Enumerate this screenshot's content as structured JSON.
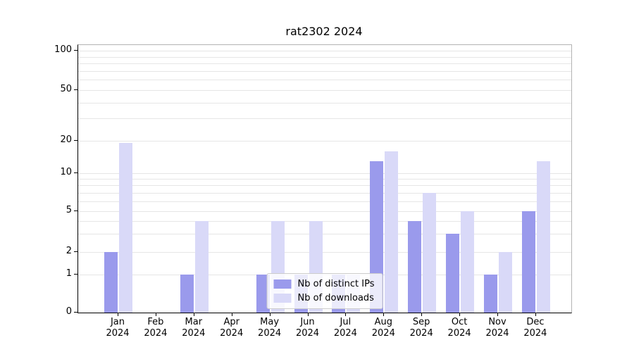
{
  "figure": {
    "title": "rat2302 2024"
  },
  "colors": {
    "ips": "#9a9aec",
    "downloads": "#d9d9f8",
    "grid": "#e6e6e6",
    "spine": "#000000",
    "spine_light": "#b3b3b3",
    "legend_border": "#cccccc",
    "background": "#ffffff"
  },
  "chart_data": {
    "type": "bar",
    "title": "rat2302 2024",
    "categories": [
      "Jan",
      "Feb",
      "Mar",
      "Apr",
      "May",
      "Jun",
      "Jul",
      "Aug",
      "Sep",
      "Oct",
      "Nov",
      "Dec"
    ],
    "x_year": "2024",
    "series": [
      {
        "name": "Nb of distinct IPs",
        "color": "#9a9aec",
        "values": [
          2,
          0,
          1,
          0,
          1,
          1,
          1,
          13,
          4,
          3,
          1,
          5
        ]
      },
      {
        "name": "Nb of downloads",
        "color": "#d9d9f8",
        "values": [
          19,
          0,
          4,
          0,
          4,
          4,
          1,
          16,
          7,
          5,
          2,
          13
        ]
      }
    ],
    "yscale": "symlog",
    "ylim": [
      0,
      110
    ],
    "yticks": [
      0,
      1,
      2,
      5,
      10,
      20,
      50,
      100
    ],
    "minor_gridlines": [
      3,
      4,
      6,
      7,
      8,
      9,
      30,
      40,
      60,
      70,
      80,
      90
    ],
    "grid": true,
    "legend": {
      "position": "lower center",
      "labels": [
        "Nb of distinct IPs",
        "Nb of downloads"
      ]
    }
  }
}
